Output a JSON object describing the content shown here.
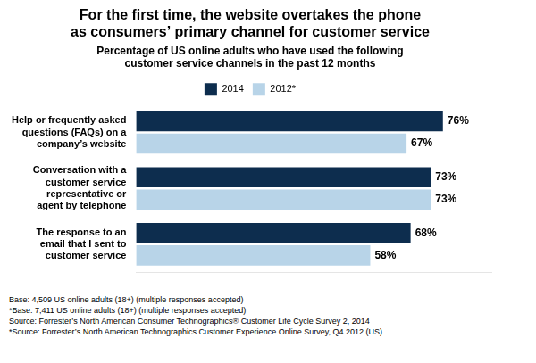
{
  "chart_data": {
    "type": "bar",
    "orientation": "horizontal",
    "title": [
      "For the first time, the website overtakes the phone",
      "as consumers’ primary channel for customer service"
    ],
    "subtitle": [
      "Percentage of US online adults who have used the following",
      "customer service channels in the past 12 months"
    ],
    "categories": [
      "Help or frequently asked\nquestions (FAQs) on a\ncompany’s website",
      "Conversation with a\ncustomer service\nrepresentative or\nagent by telephone",
      "The response to an\nemail that I sent to\ncustomer service"
    ],
    "series": [
      {
        "name": "2014",
        "color": "#0d2d4e",
        "values": [
          76,
          73,
          68
        ],
        "value_labels": [
          "76%",
          "73%",
          "68%"
        ]
      },
      {
        "name": "2012*",
        "color": "#b8d4e8",
        "values": [
          67,
          73,
          58
        ],
        "value_labels": [
          "67%",
          "73%",
          "58%"
        ]
      }
    ],
    "xlim": [
      0,
      88
    ],
    "grid": false,
    "legend": "top",
    "data_labels": true,
    "tick_labels": "y",
    "footnote": [
      "Base: 4,509 US online adults (18+) (multiple responses accepted)",
      "*Base: 7,411 US online adults (18+) (multiple responses accepted)",
      "Source: Forrester’s North American Consumer Technographics® Customer Life Cycle Survey 2, 2014",
      "*Source: Forrester’s North American Technographics Customer Experience Online Survey, Q4 2012 (US)"
    ]
  }
}
